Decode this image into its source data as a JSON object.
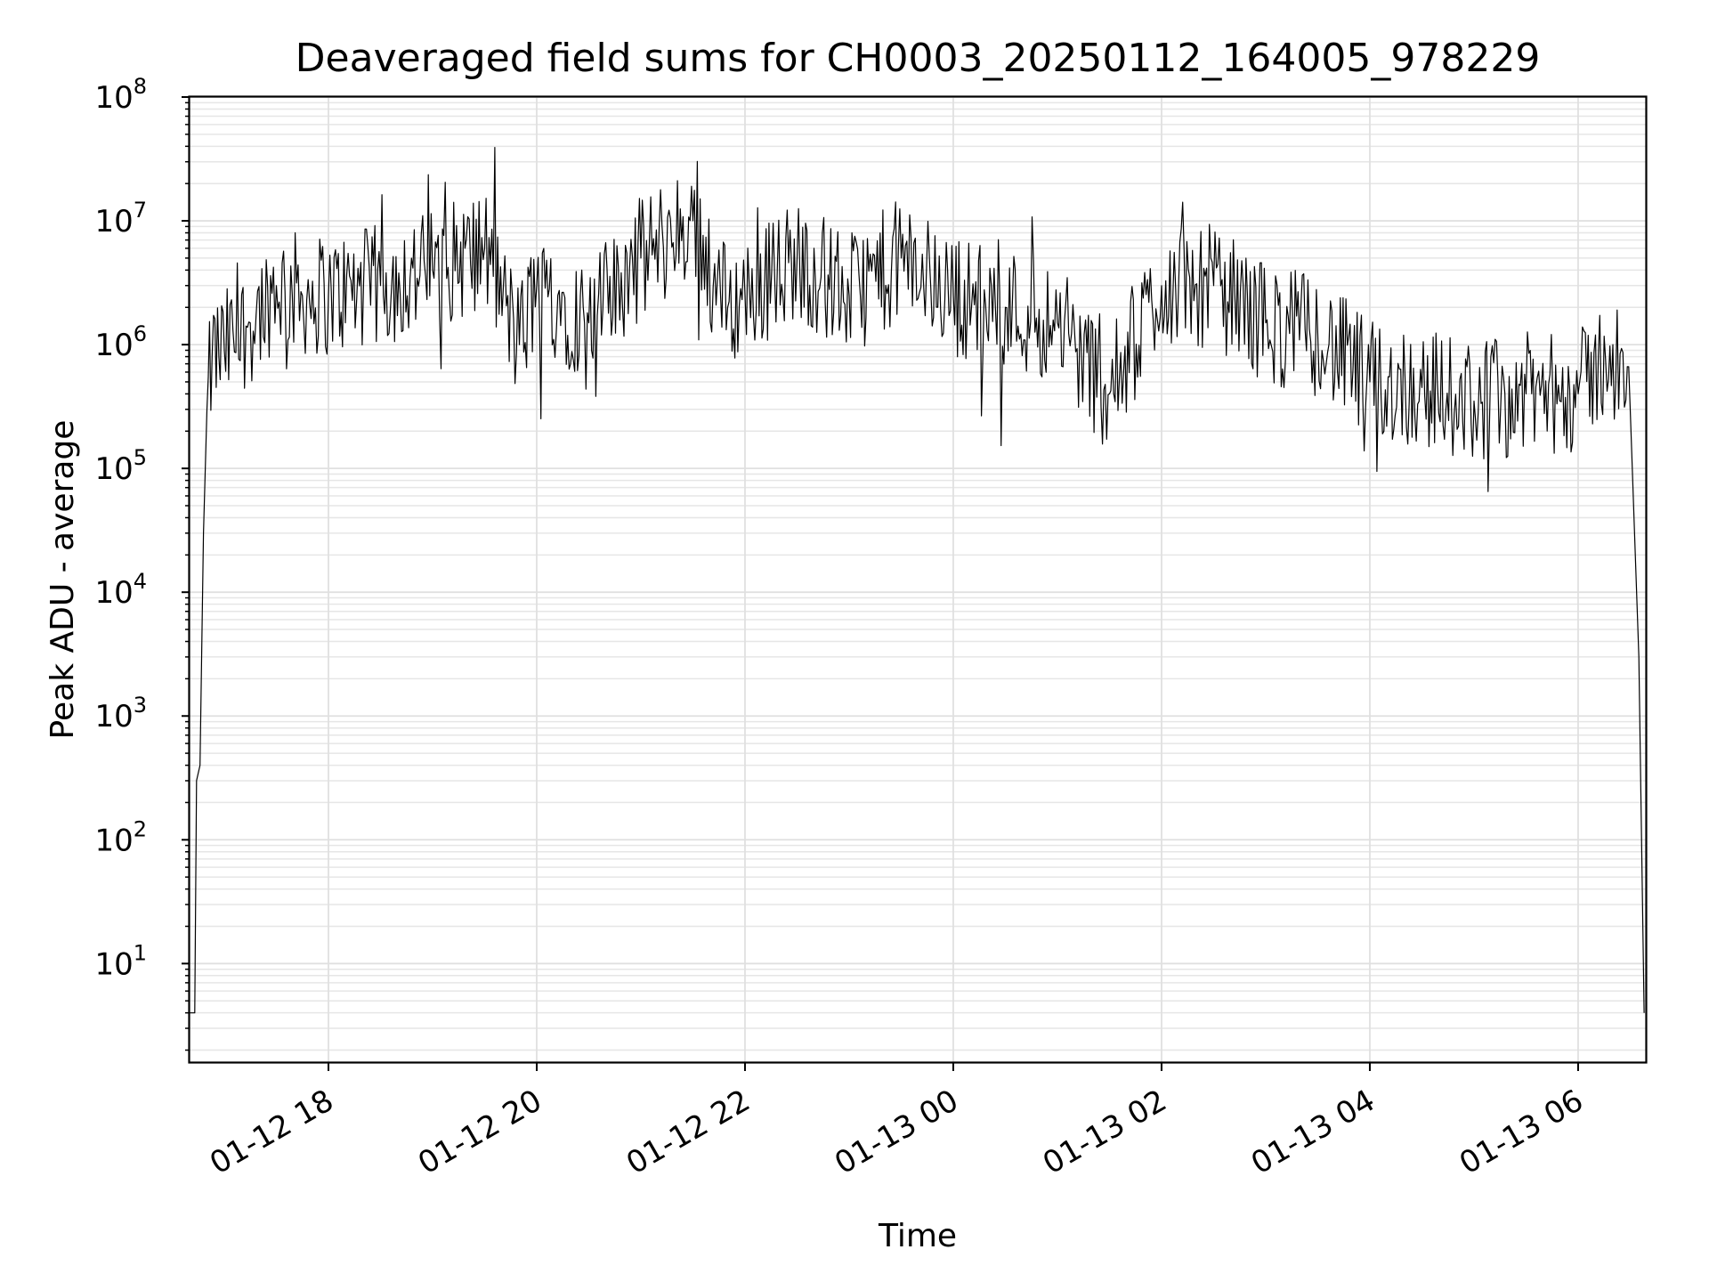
{
  "chart_data": {
    "type": "line",
    "title": "Deaveraged field sums for CH0003_20250112_164005_978229",
    "xlabel": "Time",
    "ylabel": "Peak ADU - average",
    "y_scale": "log",
    "grid": true,
    "grid_minor": true,
    "xlim": [
      "2025-01-12 16:40",
      "2025-01-13 06:39"
    ],
    "ylim": [
      1.6,
      100000000
    ],
    "x_ticks": [
      {
        "value": "2025-01-12 18:00",
        "label": "01-12 18"
      },
      {
        "value": "2025-01-12 20:00",
        "label": "01-12 20"
      },
      {
        "value": "2025-01-12 22:00",
        "label": "01-12 22"
      },
      {
        "value": "2025-01-13 00:00",
        "label": "01-13 00"
      },
      {
        "value": "2025-01-13 02:00",
        "label": "01-13 02"
      },
      {
        "value": "2025-01-13 04:00",
        "label": "01-13 04"
      },
      {
        "value": "2025-01-13 06:00",
        "label": "01-13 06"
      }
    ],
    "y_ticks": [
      {
        "value": 10,
        "base": "10",
        "exp": "1"
      },
      {
        "value": 100,
        "base": "10",
        "exp": "2"
      },
      {
        "value": 1000,
        "base": "10",
        "exp": "3"
      },
      {
        "value": 10000,
        "base": "10",
        "exp": "4"
      },
      {
        "value": 100000,
        "base": "10",
        "exp": "5"
      },
      {
        "value": 1000000,
        "base": "10",
        "exp": "6"
      },
      {
        "value": 10000000,
        "base": "10",
        "exp": "7"
      },
      {
        "value": 100000000,
        "base": "10",
        "exp": "8"
      }
    ],
    "series": [
      {
        "color": "#000000",
        "points": [
          [
            "2025-01-12 16:40",
            4
          ],
          [
            "2025-01-12 16:43",
            4
          ],
          [
            "2025-01-12 16:44",
            300
          ],
          [
            "2025-01-12 16:46",
            400
          ],
          [
            "2025-01-12 16:48",
            30000
          ],
          [
            "2025-01-12 16:50",
            300000
          ],
          [
            "2025-01-12 16:53",
            800000
          ],
          [
            "2025-01-12 17:00",
            900000
          ],
          [
            "2025-01-12 17:15",
            1500000
          ],
          [
            "2025-01-12 17:30",
            3000000
          ],
          [
            "2025-01-12 17:45",
            2500000
          ],
          [
            "2025-01-12 18:00",
            2500000
          ],
          [
            "2025-01-12 18:30",
            3000000
          ],
          [
            "2025-01-12 19:00",
            4000000
          ],
          [
            "2025-01-12 19:30",
            6000000
          ],
          [
            "2025-01-12 19:50",
            1000000
          ],
          [
            "2025-01-12 20:00",
            3000000
          ],
          [
            "2025-01-12 20:30",
            1500000
          ],
          [
            "2025-01-12 21:00",
            5000000
          ],
          [
            "2025-01-12 21:30",
            10000000
          ],
          [
            "2025-01-12 21:50",
            2000000
          ],
          [
            "2025-01-12 22:00",
            2500000
          ],
          [
            "2025-01-12 22:30",
            5000000
          ],
          [
            "2025-01-12 23:00",
            2500000
          ],
          [
            "2025-01-12 23:30",
            5000000
          ],
          [
            "2025-01-13 00:00",
            2500000
          ],
          [
            "2025-01-13 00:30",
            2000000
          ],
          [
            "2025-01-13 01:00",
            1500000
          ],
          [
            "2025-01-13 01:30",
            400000
          ],
          [
            "2025-01-13 02:00",
            3000000
          ],
          [
            "2025-01-13 02:30",
            3000000
          ],
          [
            "2025-01-13 03:00",
            1500000
          ],
          [
            "2025-01-13 03:30",
            1200000
          ],
          [
            "2025-01-13 04:00",
            500000
          ],
          [
            "2025-01-13 04:30",
            450000
          ],
          [
            "2025-01-13 05:00",
            350000
          ],
          [
            "2025-01-13 05:30",
            400000
          ],
          [
            "2025-01-13 06:00",
            400000
          ],
          [
            "2025-01-13 06:20",
            1000000
          ],
          [
            "2025-01-13 06:30",
            300000
          ],
          [
            "2025-01-13 06:35",
            3000
          ],
          [
            "2025-01-13 06:38",
            4
          ]
        ]
      }
    ]
  }
}
